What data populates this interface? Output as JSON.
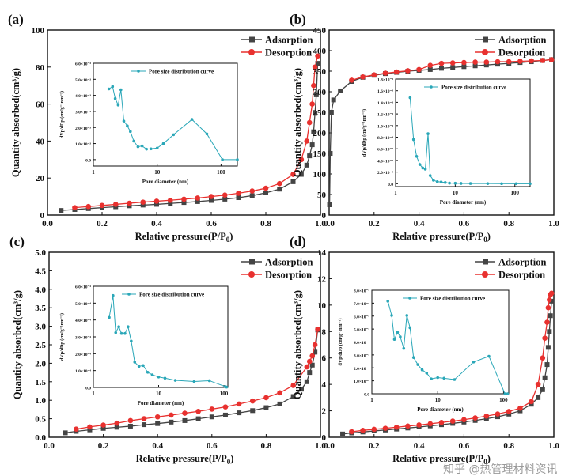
{
  "colors": {
    "adsorption": "#444444",
    "desorption": "#e8312f",
    "psd": "#2aa7b8",
    "axis": "#111111"
  },
  "watermark": "知乎 @热管理材料资讯",
  "chart_data": [
    {
      "type": "line",
      "panel_label": "(a)",
      "xlabel": "Relative pressure(P/P",
      "xlabel_sub": "0",
      "xlabel_end": ")",
      "ylabel": "Quantity absorbed(cm³/g)",
      "xlim": [
        0,
        1
      ],
      "ylim": [
        0,
        100
      ],
      "xticks": [
        0,
        0.2,
        0.4,
        0.6,
        0.8,
        1.0
      ],
      "yticks": [
        0,
        20,
        40,
        60,
        80,
        100
      ],
      "legend": "top-right",
      "series": [
        {
          "name": "Adsorption",
          "marker": "square",
          "x": [
            0.05,
            0.1,
            0.15,
            0.2,
            0.25,
            0.3,
            0.35,
            0.4,
            0.45,
            0.5,
            0.55,
            0.6,
            0.65,
            0.7,
            0.75,
            0.8,
            0.85,
            0.9,
            0.93,
            0.95,
            0.96,
            0.97,
            0.975,
            0.98,
            0.985,
            0.99
          ],
          "y": [
            2.5,
            3,
            3.5,
            4,
            4.5,
            5,
            5.4,
            5.8,
            6.3,
            6.8,
            7.3,
            7.9,
            8.6,
            9.4,
            10.5,
            12,
            14,
            18,
            22,
            27,
            32,
            38,
            45,
            55,
            65,
            82
          ]
        },
        {
          "name": "Desorption",
          "marker": "circle",
          "x": [
            0.1,
            0.15,
            0.2,
            0.25,
            0.3,
            0.35,
            0.4,
            0.45,
            0.5,
            0.55,
            0.6,
            0.65,
            0.7,
            0.75,
            0.8,
            0.85,
            0.9,
            0.93,
            0.95,
            0.96,
            0.97,
            0.975,
            0.98,
            0.99
          ],
          "y": [
            4,
            4.6,
            5.2,
            5.8,
            6.4,
            7,
            7.5,
            8,
            8.6,
            9.2,
            10,
            10.8,
            11.8,
            13,
            14.5,
            17,
            22,
            30,
            40,
            50,
            60,
            70,
            80,
            86
          ]
        }
      ],
      "inset": {
        "xlabel": "Pore diameter (nm)",
        "ylabel": "dVp/dDp (cm³g⁻¹nm⁻¹)",
        "legend": "Pore size distribution curve",
        "xscale": "log",
        "xlim": [
          1,
          180
        ],
        "ylim": [
          -0.4,
          6
        ],
        "xticks": [
          1,
          10,
          100
        ],
        "yticks": [
          0,
          1,
          2,
          3,
          4,
          5,
          6
        ],
        "ytick_labels": [
          "0.0",
          "1.0×10⁻³",
          "2.0×10⁻³",
          "3.0×10⁻³",
          "4.0×10⁻³",
          "5.0×10⁻³",
          "6.0×10⁻³"
        ],
        "x": [
          1.75,
          2,
          2.2,
          2.45,
          2.7,
          3,
          3.4,
          3.8,
          4.3,
          5,
          5.8,
          6.8,
          8,
          10,
          12.5,
          18,
          35,
          60,
          105,
          180
        ],
        "y": [
          4.4,
          4.55,
          3.8,
          3.4,
          4.35,
          2.4,
          2.1,
          1.75,
          1.15,
          0.8,
          0.85,
          0.65,
          0.67,
          0.72,
          1.0,
          1.55,
          2.5,
          1.6,
          0,
          0
        ]
      }
    },
    {
      "type": "line",
      "panel_label": "(b)",
      "xlabel": "Relative pressure(P/P",
      "xlabel_sub": "0",
      "xlabel_end": ")",
      "ylabel": "Quantity absorbed(cm³/g)",
      "xlim": [
        0,
        1
      ],
      "ylim": [
        0,
        450
      ],
      "xticks": [
        0,
        0.2,
        0.4,
        0.6,
        0.8,
        1.0
      ],
      "yticks": [
        0,
        50,
        100,
        150,
        200,
        250,
        300,
        350,
        400,
        450
      ],
      "legend": "top-right",
      "series": [
        {
          "name": "Adsorption",
          "marker": "square",
          "x": [
            0.002,
            0.005,
            0.01,
            0.02,
            0.05,
            0.1,
            0.15,
            0.2,
            0.25,
            0.3,
            0.35,
            0.4,
            0.45,
            0.5,
            0.55,
            0.6,
            0.65,
            0.7,
            0.75,
            0.8,
            0.85,
            0.9,
            0.95,
            0.99
          ],
          "y": [
            25,
            150,
            250,
            280,
            302,
            325,
            335,
            340,
            344,
            347,
            350,
            352,
            354,
            357,
            359,
            361,
            363,
            365,
            367,
            369,
            371,
            373,
            376,
            378
          ]
        },
        {
          "name": "Desorption",
          "marker": "circle",
          "x": [
            0.1,
            0.15,
            0.2,
            0.25,
            0.3,
            0.35,
            0.4,
            0.45,
            0.5,
            0.55,
            0.6,
            0.65,
            0.7,
            0.75,
            0.8,
            0.85,
            0.9,
            0.95,
            0.99
          ],
          "y": [
            328,
            336,
            341,
            345,
            348,
            351,
            354,
            364,
            369,
            370,
            371,
            372,
            372,
            373,
            373,
            374,
            375,
            376,
            378
          ]
        }
      ],
      "inset": {
        "xlabel": "Pore diameter (nm)",
        "ylabel": "dVp/dDp (cm³g⁻¹nm⁻¹)",
        "legend": "Pore size distribution curve",
        "xscale": "log",
        "xlim": [
          1,
          180
        ],
        "ylim": [
          -0.05,
          1.8
        ],
        "xticks": [
          1,
          10,
          100
        ],
        "yticks": [
          0,
          0.2,
          0.4,
          0.6,
          0.8,
          1.0,
          1.2,
          1.4,
          1.6,
          1.8
        ],
        "ytick_labels": [
          "0.0",
          "2.0×10⁻⁴",
          "4.0×10⁻⁴",
          "6.0×10⁻⁴",
          "8.0×10⁻⁴",
          "1.0×10⁻³",
          "1.2×10⁻³",
          "1.4×10⁻³",
          "1.6×10⁻³",
          "1.8×10⁻³"
        ],
        "x": [
          1.75,
          2,
          2.25,
          2.55,
          2.85,
          3.15,
          3.5,
          3.8,
          4.3,
          5,
          5.8,
          6.8,
          8,
          10,
          12.5,
          18,
          35,
          60,
          105,
          180
        ],
        "y": [
          1.48,
          0.76,
          0.47,
          0.33,
          0.27,
          0.25,
          0.86,
          0.14,
          0.06,
          0.035,
          0.03,
          0.02,
          0.01,
          0.008,
          0.005,
          0.003,
          0.002,
          0.001,
          0,
          0
        ]
      }
    },
    {
      "type": "line",
      "panel_label": "(c)",
      "xlabel": "Relative pressure(P/P",
      "xlabel_sub": "0",
      "xlabel_end": ")",
      "ylabel": "Quantity absorbed(cm³/g)",
      "xlim": [
        0,
        1
      ],
      "ylim": [
        0,
        5
      ],
      "xticks": [
        0,
        0.2,
        0.4,
        0.6,
        0.8,
        1.0
      ],
      "yticks": [
        0,
        0.5,
        1.0,
        1.5,
        2.0,
        2.5,
        3.0,
        3.5,
        4.0,
        4.5,
        5.0
      ],
      "legend": "top-right",
      "series": [
        {
          "name": "Adsorption",
          "marker": "square",
          "x": [
            0.06,
            0.1,
            0.15,
            0.2,
            0.25,
            0.3,
            0.35,
            0.4,
            0.45,
            0.5,
            0.55,
            0.6,
            0.65,
            0.7,
            0.75,
            0.8,
            0.85,
            0.9,
            0.93,
            0.95,
            0.96,
            0.97,
            0.98,
            0.99
          ],
          "y": [
            0.12,
            0.16,
            0.2,
            0.24,
            0.27,
            0.3,
            0.34,
            0.37,
            0.41,
            0.45,
            0.5,
            0.55,
            0.6,
            0.66,
            0.72,
            0.8,
            0.9,
            1.1,
            1.3,
            1.5,
            1.75,
            1.95,
            2.3,
            2.9
          ]
        },
        {
          "name": "Desorption",
          "marker": "circle",
          "x": [
            0.1,
            0.15,
            0.2,
            0.25,
            0.3,
            0.35,
            0.4,
            0.45,
            0.5,
            0.55,
            0.6,
            0.65,
            0.7,
            0.75,
            0.8,
            0.85,
            0.9,
            0.95,
            0.96,
            0.97,
            0.98,
            0.99
          ],
          "y": [
            0.22,
            0.28,
            0.33,
            0.38,
            0.45,
            0.5,
            0.55,
            0.6,
            0.65,
            0.7,
            0.76,
            0.82,
            0.9,
            0.98,
            1.07,
            1.2,
            1.4,
            1.9,
            2.05,
            2.2,
            2.5,
            2.92
          ]
        }
      ],
      "inset": {
        "xlabel": "Pore diameter (nm)",
        "ylabel": "dVp/dDp (cm³g⁻¹nm⁻¹)",
        "legend": "Pore size distribution curve",
        "xscale": "log",
        "xlim": [
          1,
          115
        ],
        "ylim": [
          0,
          6
        ],
        "xticks": [
          1,
          10,
          100
        ],
        "yticks": [
          0,
          1,
          2,
          3,
          4,
          5,
          6
        ],
        "ytick_labels": [
          "0.0",
          "1.0×10⁻⁴",
          "2.0×10⁻⁴",
          "3.0×10⁻⁴",
          "4.0×10⁻⁴",
          "5.0×10⁻⁴",
          "6.0×10⁻⁴"
        ],
        "x": [
          1.75,
          2,
          2.2,
          2.45,
          2.7,
          3.05,
          3.4,
          3.8,
          4.3,
          5,
          5.8,
          6.8,
          8,
          10,
          12.5,
          18,
          35,
          60,
          105,
          110
        ],
        "y": [
          4.15,
          5.45,
          3.25,
          3.6,
          3.2,
          3.2,
          3.6,
          2.75,
          1.5,
          1.25,
          1.3,
          0.9,
          0.75,
          0.62,
          0.55,
          0.42,
          0.35,
          0.4,
          0.05,
          0.02
        ]
      }
    },
    {
      "type": "line",
      "panel_label": "(d)",
      "xlabel": "Relative pressure(P/P",
      "xlabel_sub": "0",
      "xlabel_end": ")",
      "ylabel": "Quantity absorbed(cm³/g)",
      "xlim": [
        0,
        1
      ],
      "ylim": [
        0,
        14
      ],
      "xticks": [
        0,
        0.2,
        0.4,
        0.6,
        0.8,
        1.0
      ],
      "yticks": [
        0,
        2,
        4,
        6,
        8,
        10,
        12,
        14
      ],
      "legend": "top-right",
      "series": [
        {
          "name": "Adsorption",
          "marker": "square",
          "x": [
            0.06,
            0.1,
            0.15,
            0.2,
            0.25,
            0.3,
            0.35,
            0.4,
            0.45,
            0.5,
            0.55,
            0.6,
            0.65,
            0.7,
            0.75,
            0.8,
            0.85,
            0.9,
            0.93,
            0.95,
            0.96,
            0.97,
            0.975,
            0.98,
            0.985,
            0.99
          ],
          "y": [
            0.25,
            0.33,
            0.4,
            0.48,
            0.55,
            0.62,
            0.7,
            0.78,
            0.86,
            0.95,
            1.05,
            1.15,
            1.27,
            1.4,
            1.55,
            1.75,
            2.0,
            2.5,
            3.0,
            3.6,
            4.5,
            5.5,
            6.8,
            8,
            9.2,
            10.3
          ]
        },
        {
          "name": "Desorption",
          "marker": "circle",
          "x": [
            0.1,
            0.15,
            0.2,
            0.25,
            0.3,
            0.35,
            0.4,
            0.45,
            0.5,
            0.55,
            0.6,
            0.65,
            0.7,
            0.75,
            0.8,
            0.85,
            0.9,
            0.93,
            0.95,
            0.96,
            0.97,
            0.975,
            0.98,
            0.985,
            0.99
          ],
          "y": [
            0.42,
            0.52,
            0.6,
            0.68,
            0.76,
            0.85,
            0.93,
            1.02,
            1.12,
            1.22,
            1.33,
            1.46,
            1.6,
            1.76,
            1.95,
            2.2,
            2.7,
            4.0,
            6.0,
            7.5,
            8.7,
            9.8,
            10.4,
            10.8,
            10.9
          ]
        }
      ],
      "inset": {
        "xlabel": "Pore diameter (nm)",
        "ylabel": "dVp/dDp (cm³g⁻¹nm⁻¹)",
        "legend": "Pore size distribution curve",
        "xscale": "log",
        "xlim": [
          1,
          120
        ],
        "ylim": [
          0,
          8
        ],
        "xticks": [
          1,
          10,
          100
        ],
        "yticks": [
          0,
          1,
          2,
          3,
          4,
          5,
          6,
          7,
          8
        ],
        "ytick_labels": [
          "0.0",
          "1.0×10⁻⁴",
          "2.0×10⁻⁴",
          "3.0×10⁻⁴",
          "4.0×10⁻⁴",
          "5.0×10⁻⁴",
          "6.0×10⁻⁴",
          "7.0×10⁻⁴",
          "8.0×10⁻⁴"
        ],
        "x": [
          1.75,
          2,
          2.2,
          2.45,
          2.7,
          3.05,
          3.4,
          3.8,
          4.3,
          5,
          5.8,
          6.8,
          8,
          10,
          12.5,
          18,
          35,
          60,
          105,
          115
        ],
        "y": [
          7.15,
          6.05,
          4.2,
          4.75,
          4.4,
          3.5,
          6.05,
          5.1,
          2.8,
          2.25,
          1.85,
          1.6,
          1.15,
          1.25,
          1.2,
          1.1,
          2.45,
          2.9,
          0,
          0
        ]
      }
    }
  ]
}
